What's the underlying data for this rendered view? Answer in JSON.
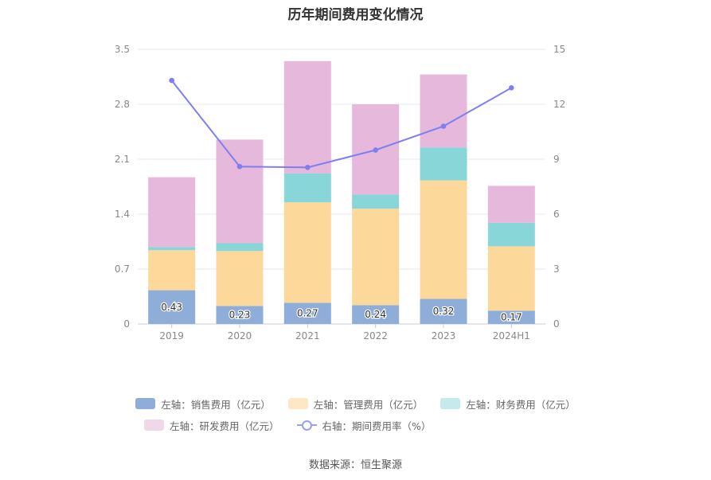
{
  "title": "历年期间费用变化情况",
  "source": "数据来源：恒生聚源",
  "colors": {
    "sales": "#8eadd9",
    "admin": "#fdd89b",
    "finance": "#88d6d8",
    "rd": "#e6b8db",
    "rate_line": "#7d7ff0"
  },
  "chart_data": {
    "type": "bar",
    "stacked": true,
    "categories": [
      "2019",
      "2020",
      "2021",
      "2022",
      "2023",
      "2024H1"
    ],
    "y_left": {
      "ticks": [
        "0",
        "0.7",
        "1.4",
        "2.1",
        "2.8",
        "3.5"
      ],
      "range": [
        0,
        3.5
      ]
    },
    "y_right": {
      "ticks": [
        "0",
        "3",
        "6",
        "9",
        "12",
        "15"
      ],
      "range": [
        0,
        15
      ]
    },
    "grid": true,
    "legend_position": "bottom",
    "series": [
      {
        "key": "sales",
        "name": "左轴：销售费用（亿元）",
        "axis": "left",
        "type": "bar",
        "values": [
          0.43,
          0.23,
          0.27,
          0.24,
          0.32,
          0.17
        ],
        "labels": [
          "0.43",
          "0.23",
          "0.27",
          "0.24",
          "0.32",
          "0.17"
        ]
      },
      {
        "key": "admin",
        "name": "左轴：管理费用（亿元）",
        "axis": "left",
        "type": "bar",
        "values": [
          0.51,
          0.7,
          1.28,
          1.23,
          1.51,
          0.82
        ]
      },
      {
        "key": "finance",
        "name": "左轴：财务费用（亿元）",
        "axis": "left",
        "type": "bar",
        "values": [
          0.04,
          0.1,
          0.37,
          0.18,
          0.42,
          0.3
        ]
      },
      {
        "key": "rd",
        "name": "左轴：研发费用（亿元）",
        "axis": "left",
        "type": "bar",
        "values": [
          0.89,
          1.32,
          1.43,
          1.15,
          0.93,
          0.47
        ]
      },
      {
        "key": "rate_line",
        "name": "右轴：期间费用率（%）",
        "axis": "right",
        "type": "line",
        "values": [
          13.3,
          8.6,
          8.55,
          9.5,
          10.8,
          12.9
        ]
      }
    ]
  }
}
